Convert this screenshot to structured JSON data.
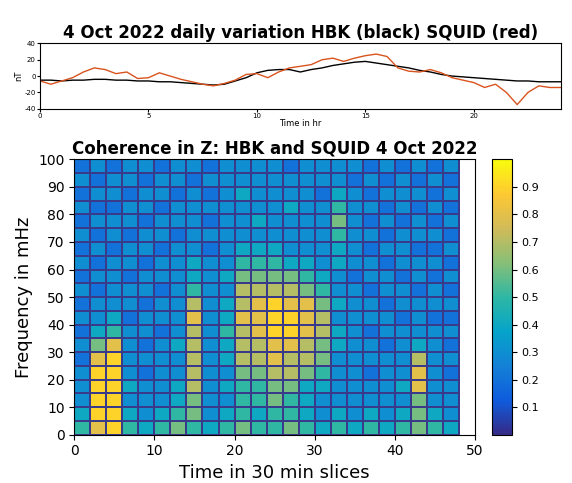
{
  "chart_data": [
    {
      "type": "line",
      "title": "4 Oct 2022 daily variation HBK (black) SQUID (red)",
      "x_label": "Time in hr",
      "y_label": "nT",
      "xlim": [
        0,
        24
      ],
      "xticks": [
        0,
        5,
        10,
        15,
        20
      ],
      "ylim": [
        -40,
        40
      ],
      "yticks": [
        -40,
        -20,
        0,
        20,
        40
      ],
      "x": [
        0,
        0.5,
        1,
        1.5,
        2,
        2.5,
        3,
        3.5,
        4,
        4.5,
        5,
        5.5,
        6,
        6.5,
        7,
        7.5,
        8,
        8.5,
        9,
        9.5,
        10,
        10.5,
        11,
        11.5,
        12,
        12.5,
        13,
        13.5,
        14,
        14.5,
        15,
        15.5,
        16,
        16.5,
        17,
        17.5,
        18,
        18.5,
        19,
        19.5,
        20,
        20.5,
        21,
        21.5,
        22,
        22.5,
        23,
        23.5,
        24
      ],
      "series": [
        {
          "color": "#000000",
          "values": [
            -5,
            -5,
            -6,
            -5,
            -5,
            -4,
            -4,
            -5,
            -5,
            -6,
            -6,
            -7,
            -7,
            -8,
            -9,
            -10,
            -11,
            -10,
            -6,
            -2,
            4,
            7,
            8,
            8,
            5,
            8,
            10,
            13,
            15,
            17,
            18,
            16,
            14,
            12,
            10,
            7,
            5,
            2,
            0,
            -1,
            -2,
            -3,
            -4,
            -5,
            -6,
            -6,
            -7,
            -7,
            -7
          ]
        },
        {
          "color": "#d9531e",
          "values": [
            -6,
            -10,
            -6,
            -2,
            5,
            10,
            8,
            3,
            5,
            -3,
            -2,
            4,
            0,
            -4,
            -7,
            -10,
            -12,
            -9,
            -5,
            2,
            3,
            -2,
            5,
            10,
            12,
            14,
            20,
            22,
            18,
            22,
            25,
            27,
            24,
            10,
            6,
            5,
            8,
            4,
            -2,
            -5,
            -8,
            -14,
            -10,
            -20,
            -35,
            -20,
            -12,
            -14,
            -14
          ]
        }
      ]
    },
    {
      "type": "heatmap",
      "title": "Coherence in Z: HBK and SQUID 4 Oct 2022",
      "x_label": "Time in 30 min slices",
      "y_label": "Frequency in mHz",
      "xlim": [
        0,
        50
      ],
      "xticks": [
        0,
        10,
        20,
        30,
        40,
        50
      ],
      "ylim": [
        0,
        100
      ],
      "yticks": [
        0,
        10,
        20,
        30,
        40,
        50,
        60,
        70,
        80,
        90,
        100
      ],
      "x_edges": [
        0,
        2,
        4,
        6,
        8,
        10,
        12,
        14,
        16,
        18,
        20,
        22,
        24,
        26,
        28,
        30,
        32,
        34,
        36,
        38,
        40,
        42,
        44,
        46,
        48
      ],
      "y_edges": [
        0,
        5,
        10,
        15,
        20,
        25,
        30,
        35,
        40,
        45,
        50,
        55,
        60,
        65,
        70,
        75,
        80,
        85,
        90,
        95,
        100
      ],
      "cells": [
        [
          0.5,
          0.8,
          0.9,
          0.5,
          0.4,
          0.5,
          0.6,
          0.5,
          0.4,
          0.5,
          0.6,
          0.5,
          0.5,
          0.6,
          0.5,
          0.4,
          0.5,
          0.4,
          0.5,
          0.4,
          0.5,
          0.6,
          0.5,
          0.4
        ],
        [
          0.4,
          0.9,
          0.9,
          0.4,
          0.3,
          0.4,
          0.5,
          0.6,
          0.3,
          0.4,
          0.5,
          0.4,
          0.5,
          0.5,
          0.4,
          0.3,
          0.4,
          0.3,
          0.4,
          0.3,
          0.4,
          0.6,
          0.4,
          0.3
        ],
        [
          0.3,
          0.9,
          0.9,
          0.3,
          0.3,
          0.3,
          0.4,
          0.6,
          0.3,
          0.3,
          0.5,
          0.5,
          0.6,
          0.5,
          0.4,
          0.3,
          0.3,
          0.3,
          0.3,
          0.3,
          0.3,
          0.6,
          0.3,
          0.3
        ],
        [
          0.3,
          0.9,
          0.9,
          0.4,
          0.3,
          0.3,
          0.4,
          0.7,
          0.3,
          0.4,
          0.5,
          0.5,
          0.6,
          0.6,
          0.4,
          0.4,
          0.3,
          0.3,
          0.3,
          0.3,
          0.4,
          0.8,
          0.3,
          0.3
        ],
        [
          0.3,
          0.9,
          0.9,
          0.3,
          0.2,
          0.3,
          0.3,
          0.7,
          0.3,
          0.3,
          0.6,
          0.6,
          0.7,
          0.7,
          0.6,
          0.5,
          0.3,
          0.3,
          0.2,
          0.3,
          0.3,
          0.8,
          0.3,
          0.2
        ],
        [
          0.2,
          0.8,
          0.9,
          0.3,
          0.3,
          0.3,
          0.3,
          0.7,
          0.3,
          0.4,
          0.7,
          0.7,
          0.8,
          0.7,
          0.7,
          0.6,
          0.3,
          0.3,
          0.3,
          0.3,
          0.3,
          0.7,
          0.3,
          0.3
        ],
        [
          0.3,
          0.6,
          0.8,
          0.3,
          0.2,
          0.3,
          0.4,
          0.7,
          0.3,
          0.4,
          0.7,
          0.7,
          0.8,
          0.8,
          0.7,
          0.6,
          0.4,
          0.3,
          0.3,
          0.2,
          0.3,
          0.4,
          0.3,
          0.2
        ],
        [
          0.2,
          0.4,
          0.5,
          0.3,
          0.3,
          0.2,
          0.3,
          0.7,
          0.3,
          0.5,
          0.7,
          0.8,
          0.9,
          0.9,
          0.8,
          0.7,
          0.4,
          0.3,
          0.2,
          0.3,
          0.3,
          0.3,
          0.3,
          0.3
        ],
        [
          0.3,
          0.3,
          0.4,
          0.2,
          0.3,
          0.3,
          0.3,
          0.8,
          0.3,
          0.4,
          0.8,
          0.8,
          0.9,
          0.9,
          0.8,
          0.7,
          0.3,
          0.3,
          0.3,
          0.3,
          0.2,
          0.3,
          0.2,
          0.2
        ],
        [
          0.2,
          0.3,
          0.3,
          0.3,
          0.2,
          0.3,
          0.3,
          0.7,
          0.3,
          0.4,
          0.7,
          0.8,
          0.9,
          0.8,
          0.8,
          0.6,
          0.4,
          0.3,
          0.3,
          0.2,
          0.3,
          0.3,
          0.3,
          0.3
        ],
        [
          0.3,
          0.2,
          0.3,
          0.3,
          0.3,
          0.2,
          0.3,
          0.5,
          0.3,
          0.3,
          0.7,
          0.7,
          0.7,
          0.7,
          0.6,
          0.5,
          0.3,
          0.3,
          0.2,
          0.3,
          0.3,
          0.2,
          0.3,
          0.2
        ],
        [
          0.2,
          0.3,
          0.3,
          0.2,
          0.3,
          0.3,
          0.3,
          0.4,
          0.3,
          0.4,
          0.6,
          0.6,
          0.6,
          0.6,
          0.5,
          0.4,
          0.3,
          0.2,
          0.3,
          0.3,
          0.2,
          0.3,
          0.2,
          0.3
        ],
        [
          0.3,
          0.2,
          0.3,
          0.3,
          0.2,
          0.3,
          0.3,
          0.4,
          0.3,
          0.3,
          0.5,
          0.5,
          0.5,
          0.4,
          0.4,
          0.3,
          0.4,
          0.3,
          0.3,
          0.2,
          0.3,
          0.3,
          0.3,
          0.2
        ],
        [
          0.2,
          0.3,
          0.2,
          0.3,
          0.3,
          0.2,
          0.3,
          0.3,
          0.2,
          0.3,
          0.4,
          0.4,
          0.4,
          0.3,
          0.3,
          0.3,
          0.4,
          0.3,
          0.2,
          0.3,
          0.3,
          0.2,
          0.2,
          0.3
        ],
        [
          0.3,
          0.2,
          0.3,
          0.2,
          0.3,
          0.3,
          0.2,
          0.3,
          0.3,
          0.3,
          0.3,
          0.3,
          0.3,
          0.3,
          0.3,
          0.3,
          0.5,
          0.3,
          0.3,
          0.2,
          0.3,
          0.3,
          0.3,
          0.2
        ],
        [
          0.2,
          0.3,
          0.3,
          0.3,
          0.2,
          0.3,
          0.3,
          0.3,
          0.2,
          0.3,
          0.3,
          0.4,
          0.3,
          0.3,
          0.3,
          0.3,
          0.6,
          0.3,
          0.2,
          0.3,
          0.2,
          0.3,
          0.2,
          0.3
        ],
        [
          0.3,
          0.2,
          0.2,
          0.3,
          0.3,
          0.2,
          0.3,
          0.3,
          0.3,
          0.3,
          0.3,
          0.3,
          0.3,
          0.4,
          0.3,
          0.3,
          0.5,
          0.3,
          0.3,
          0.2,
          0.3,
          0.2,
          0.3,
          0.2
        ],
        [
          0.2,
          0.3,
          0.3,
          0.2,
          0.3,
          0.3,
          0.2,
          0.3,
          0.2,
          0.3,
          0.4,
          0.3,
          0.3,
          0.3,
          0.3,
          0.2,
          0.4,
          0.3,
          0.2,
          0.3,
          0.3,
          0.3,
          0.2,
          0.3
        ],
        [
          0.3,
          0.2,
          0.3,
          0.3,
          0.2,
          0.3,
          0.3,
          0.2,
          0.3,
          0.3,
          0.3,
          0.3,
          0.3,
          0.3,
          0.3,
          0.3,
          0.3,
          0.2,
          0.3,
          0.2,
          0.3,
          0.2,
          0.3,
          0.2
        ],
        [
          0.2,
          0.3,
          0.2,
          0.3,
          0.3,
          0.2,
          0.3,
          0.3,
          0.2,
          0.3,
          0.3,
          0.3,
          0.3,
          0.2,
          0.3,
          0.3,
          0.3,
          0.3,
          0.2,
          0.3,
          0.2,
          0.3,
          0.2,
          0.3
        ]
      ],
      "colorbar_range": [
        0,
        1
      ],
      "colorbar_ticks": [
        0.1,
        0.2,
        0.3,
        0.4,
        0.5,
        0.6,
        0.7,
        0.8,
        0.9
      ]
    }
  ]
}
